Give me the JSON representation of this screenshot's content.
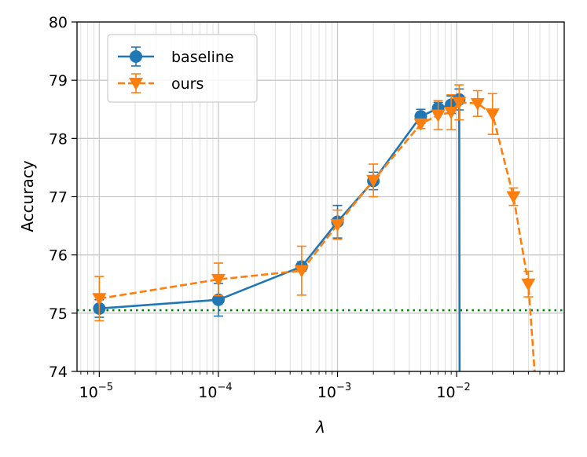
{
  "chart_data": {
    "type": "line",
    "xscale": "log",
    "xlabel": "λ",
    "ylabel": "Accuracy",
    "xlim": [
      6.5e-06,
      0.08
    ],
    "ylim": [
      74,
      80
    ],
    "yticks": [
      74,
      75,
      76,
      77,
      78,
      79,
      80
    ],
    "xticks": [
      {
        "base": "10",
        "exp": "−5",
        "value": 1e-05
      },
      {
        "base": "10",
        "exp": "−4",
        "value": 0.0001
      },
      {
        "base": "10",
        "exp": "−3",
        "value": 0.001
      },
      {
        "base": "10",
        "exp": "−2",
        "value": 0.01
      }
    ],
    "grid": "major+minor",
    "legend": {
      "position": "top-left"
    },
    "reference_line": {
      "y": 75.05,
      "color": "#008000",
      "style": "dotted"
    },
    "series": [
      {
        "name": "baseline",
        "color": "#1f77b4",
        "marker": "circle",
        "linestyle": "solid",
        "points": [
          {
            "x": 1e-05,
            "y": 75.08,
            "err": 0.15
          },
          {
            "x": 0.0001,
            "y": 75.23,
            "err": 0.28
          },
          {
            "x": 0.0005,
            "y": 75.8,
            "err": 0.08
          },
          {
            "x": 0.001,
            "y": 76.57,
            "err": 0.28
          },
          {
            "x": 0.002,
            "y": 77.27,
            "err": 0.15
          },
          {
            "x": 0.005,
            "y": 78.38,
            "err": 0.12
          },
          {
            "x": 0.007,
            "y": 78.52,
            "err": 0.1
          },
          {
            "x": 0.009,
            "y": 78.58,
            "err": 0.15
          },
          {
            "x": 0.0105,
            "y": 78.67,
            "err": 0.18
          },
          {
            "x": 0.0106,
            "y": 73.5,
            "err": 0
          }
        ]
      },
      {
        "name": "ours",
        "color": "#ff7f0e",
        "marker": "triangle-down",
        "linestyle": "dashed",
        "points": [
          {
            "x": 1e-05,
            "y": 75.25,
            "err": 0.38
          },
          {
            "x": 0.0001,
            "y": 75.58,
            "err": 0.28
          },
          {
            "x": 0.0005,
            "y": 75.73,
            "err": 0.42
          },
          {
            "x": 0.001,
            "y": 76.52,
            "err": 0.25
          },
          {
            "x": 0.002,
            "y": 77.28,
            "err": 0.28
          },
          {
            "x": 0.005,
            "y": 78.25,
            "err": 0.08
          },
          {
            "x": 0.007,
            "y": 78.4,
            "err": 0.25
          },
          {
            "x": 0.009,
            "y": 78.45,
            "err": 0.3
          },
          {
            "x": 0.0105,
            "y": 78.62,
            "err": 0.3
          },
          {
            "x": 0.015,
            "y": 78.6,
            "err": 0.22
          },
          {
            "x": 0.02,
            "y": 78.42,
            "err": 0.35
          },
          {
            "x": 0.03,
            "y": 77.0,
            "err": 0.15
          },
          {
            "x": 0.04,
            "y": 75.5,
            "err": 0.22
          },
          {
            "x": 0.047,
            "y": 73.5,
            "err": 0
          }
        ]
      }
    ]
  }
}
